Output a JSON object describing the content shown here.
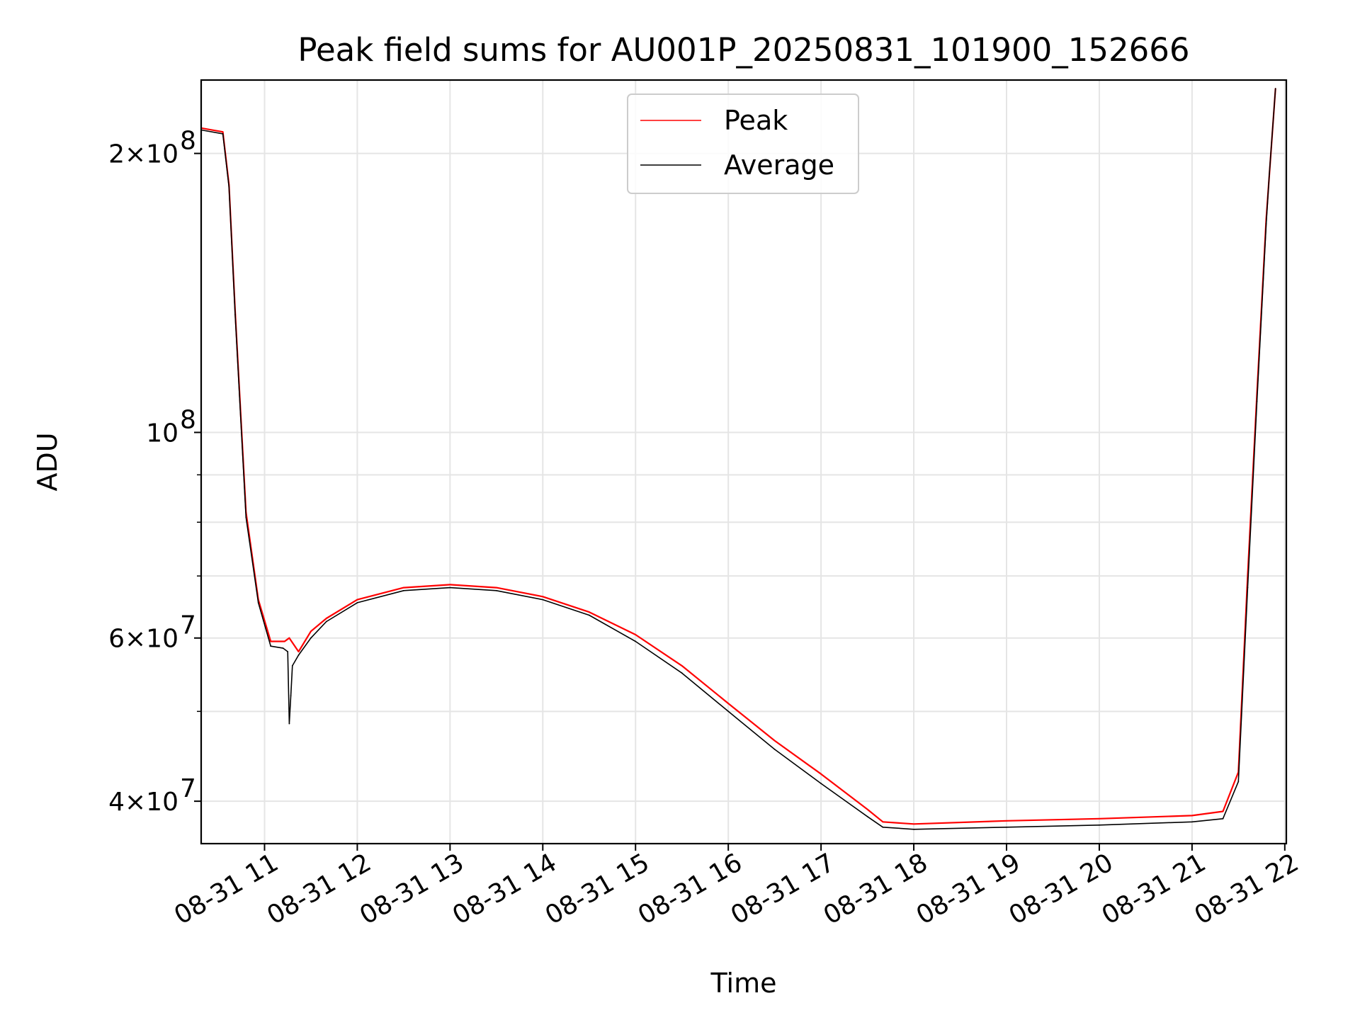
{
  "chart_data": {
    "type": "line",
    "title": "Peak field sums for AU001P_20250831_101900_152666",
    "xlabel": "Time",
    "ylabel": "ADU",
    "yscale": "log",
    "ylim": [
      36000000,
      240000000
    ],
    "xlim": [
      "2025-08-31 10:19",
      "2025-08-31 22:01"
    ],
    "x_ticks": [
      "08-31 11",
      "08-31 12",
      "08-31 13",
      "08-31 14",
      "08-31 15",
      "08-31 16",
      "08-31 17",
      "08-31 18",
      "08-31 19",
      "08-31 20",
      "08-31 21",
      "08-31 22"
    ],
    "y_major_ticks": [
      {
        "value": 40000000,
        "label_base": "4×10",
        "exp": "7"
      },
      {
        "value": 60000000,
        "label_base": "6×10",
        "exp": "7"
      },
      {
        "value": 100000000,
        "label_base": "10",
        "exp": "8"
      },
      {
        "value": 200000000,
        "label_base": "2×10",
        "exp": "8"
      }
    ],
    "y_minor_ticks": [
      50000000,
      70000000,
      80000000,
      90000000
    ],
    "grid": true,
    "legend_position": "upper center",
    "series": [
      {
        "name": "Peak",
        "color": "#ff0000",
        "x": [
          "2025-08-31 10:19",
          "2025-08-31 10:33",
          "2025-08-31 10:37",
          "2025-08-31 10:41",
          "2025-08-31 10:48",
          "2025-08-31 10:56",
          "2025-08-31 11:04",
          "2025-08-31 11:13",
          "2025-08-31 11:16",
          "2025-08-31 11:22",
          "2025-08-31 11:30",
          "2025-08-31 11:40",
          "2025-08-31 12:00",
          "2025-08-31 12:30",
          "2025-08-31 13:00",
          "2025-08-31 13:30",
          "2025-08-31 14:00",
          "2025-08-31 14:30",
          "2025-08-31 15:00",
          "2025-08-31 15:30",
          "2025-08-31 16:00",
          "2025-08-31 16:30",
          "2025-08-31 17:00",
          "2025-08-31 17:30",
          "2025-08-31 17:40",
          "2025-08-31 18:00",
          "2025-08-31 19:00",
          "2025-08-31 20:00",
          "2025-08-31 21:00",
          "2025-08-31 21:20",
          "2025-08-31 21:30",
          "2025-08-31 21:36",
          "2025-08-31 21:42",
          "2025-08-31 21:48",
          "2025-08-31 21:54"
        ],
        "y": [
          213000000,
          211000000,
          185000000,
          135000000,
          82000000,
          66000000,
          59500000,
          59500000,
          60000000,
          58000000,
          61000000,
          63000000,
          66000000,
          68000000,
          68500000,
          68000000,
          66500000,
          64000000,
          60500000,
          56000000,
          51000000,
          46500000,
          42800000,
          39200000,
          38000000,
          37800000,
          38100000,
          38300000,
          38600000,
          39000000,
          43000000,
          70000000,
          110000000,
          170000000,
          235000000
        ]
      },
      {
        "name": "Average",
        "color": "#000000",
        "x": [
          "2025-08-31 10:19",
          "2025-08-31 10:33",
          "2025-08-31 10:37",
          "2025-08-31 10:41",
          "2025-08-31 10:48",
          "2025-08-31 10:56",
          "2025-08-31 11:04",
          "2025-08-31 11:12",
          "2025-08-31 11:15",
          "2025-08-31 11:16",
          "2025-08-31 11:17",
          "2025-08-31 11:18",
          "2025-08-31 11:22",
          "2025-08-31 11:30",
          "2025-08-31 11:40",
          "2025-08-31 12:00",
          "2025-08-31 12:30",
          "2025-08-31 13:00",
          "2025-08-31 13:30",
          "2025-08-31 14:00",
          "2025-08-31 14:30",
          "2025-08-31 15:00",
          "2025-08-31 15:30",
          "2025-08-31 16:00",
          "2025-08-31 16:30",
          "2025-08-31 17:00",
          "2025-08-31 17:30",
          "2025-08-31 17:40",
          "2025-08-31 18:00",
          "2025-08-31 19:00",
          "2025-08-31 20:00",
          "2025-08-31 21:00",
          "2025-08-31 21:20",
          "2025-08-31 21:30",
          "2025-08-31 21:36",
          "2025-08-31 21:42",
          "2025-08-31 21:48",
          "2025-08-31 21:50",
          "2025-08-31 21:54"
        ],
        "y": [
          212000000,
          210000000,
          184000000,
          134000000,
          81000000,
          65500000,
          58800000,
          58500000,
          58000000,
          48500000,
          52000000,
          56000000,
          57500000,
          60000000,
          62500000,
          65500000,
          67500000,
          68000000,
          67500000,
          66000000,
          63500000,
          59500000,
          55000000,
          50000000,
          45500000,
          41800000,
          38500000,
          37500000,
          37300000,
          37500000,
          37700000,
          38000000,
          38300000,
          42000000,
          68000000,
          108000000,
          168000000,
          190000000,
          235000000
        ]
      }
    ]
  }
}
